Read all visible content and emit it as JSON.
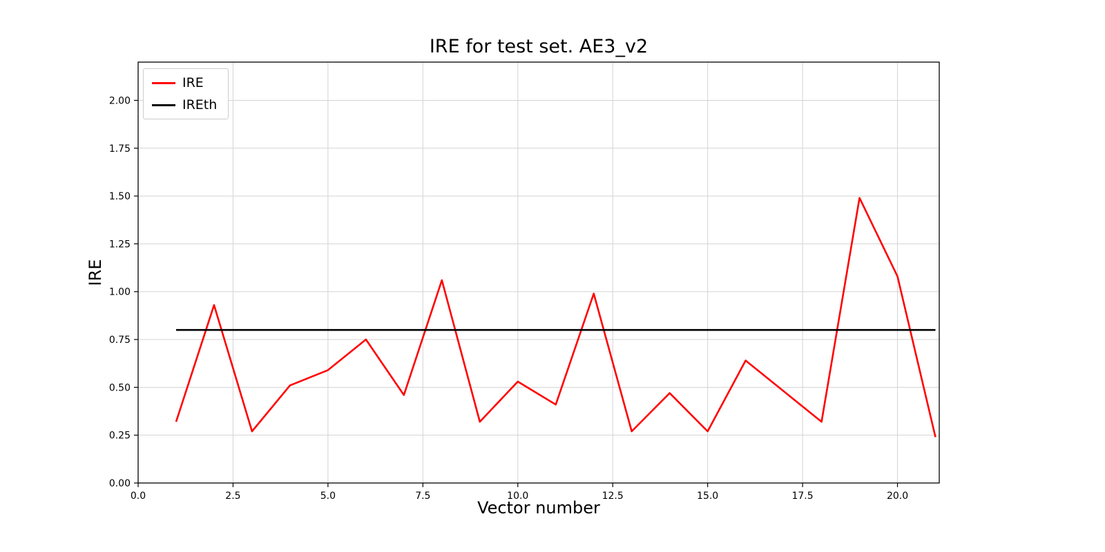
{
  "chart_data": {
    "type": "line",
    "title": "IRE for test set. AE3_v2",
    "xlabel": "Vector number",
    "ylabel": "IRE",
    "xlim": [
      0,
      21.1
    ],
    "ylim": [
      0,
      2.2
    ],
    "xticks": [
      0.0,
      2.5,
      5.0,
      7.5,
      10.0,
      12.5,
      15.0,
      17.5,
      20.0
    ],
    "xtick_labels": [
      "0.0",
      "2.5",
      "5.0",
      "7.5",
      "10.0",
      "12.5",
      "15.0",
      "17.5",
      "20.0"
    ],
    "yticks": [
      0.0,
      0.25,
      0.5,
      0.75,
      1.0,
      1.25,
      1.5,
      1.75,
      2.0
    ],
    "ytick_labels": [
      "0.00",
      "0.25",
      "0.50",
      "0.75",
      "1.00",
      "1.25",
      "1.50",
      "1.75",
      "2.00"
    ],
    "grid": true,
    "grid_color": "#d3d3d3",
    "axis_color": "#000000",
    "legend_position": "upper-left",
    "series": [
      {
        "name": "IRE",
        "color": "#ff0000",
        "x": [
          1,
          2,
          3,
          4,
          5,
          6,
          7,
          8,
          9,
          10,
          11,
          12,
          13,
          14,
          15,
          16,
          17,
          18,
          19,
          20,
          21
        ],
        "y": [
          0.32,
          0.93,
          0.27,
          0.51,
          0.59,
          0.75,
          0.46,
          1.06,
          0.32,
          0.53,
          0.41,
          0.99,
          0.27,
          0.47,
          0.27,
          0.64,
          0.48,
          0.32,
          1.49,
          1.08,
          0.24
        ]
      },
      {
        "name": "IREth",
        "color": "#000000",
        "x": [
          1,
          21
        ],
        "y": [
          0.8,
          0.8
        ]
      }
    ]
  }
}
